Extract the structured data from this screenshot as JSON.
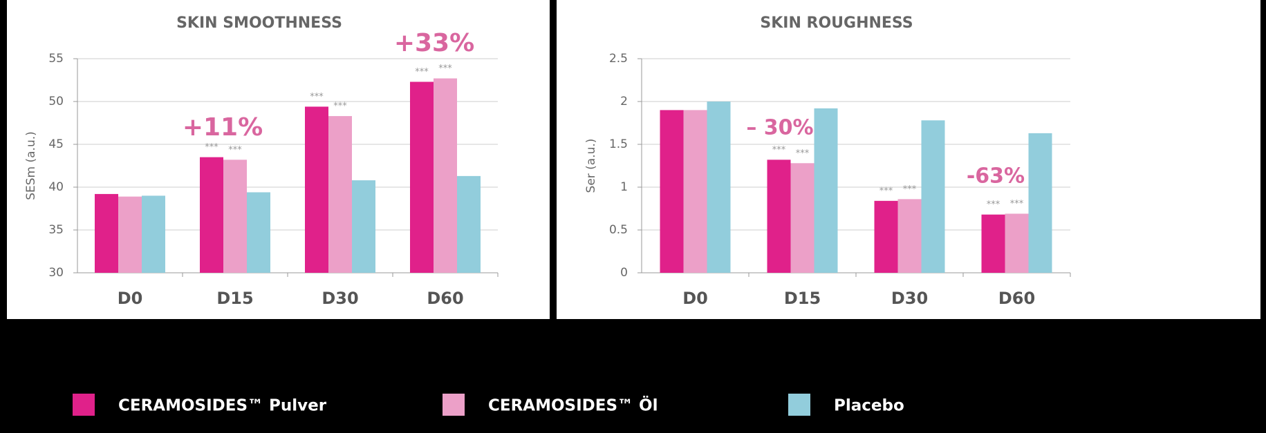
{
  "chart_data": [
    {
      "type": "bar",
      "title": "SKIN SMOOTHNESS",
      "y_label": "SESm (a.u.)",
      "categories": [
        "D0",
        "D15",
        "D30",
        "D60"
      ],
      "series": [
        {
          "name": "CERAMOSIDES™ Pulver",
          "color": "#e0218a",
          "values": [
            39.2,
            43.5,
            49.4,
            52.3
          ],
          "significance": [
            null,
            "***",
            "***",
            "***"
          ]
        },
        {
          "name": "CERAMOSIDES™ Öl",
          "color": "#eca0c8",
          "values": [
            38.9,
            43.2,
            48.3,
            52.7
          ],
          "significance": [
            null,
            "***",
            "***",
            "***"
          ]
        },
        {
          "name": "Placebo",
          "color": "#92cddc",
          "values": [
            39.0,
            39.4,
            40.8,
            41.3
          ]
        }
      ],
      "ylim": [
        30,
        55
      ],
      "yticks": [
        30,
        35,
        40,
        45,
        50,
        55
      ],
      "grid": true,
      "annotations": [
        "+11%",
        "+33%"
      ]
    },
    {
      "type": "bar",
      "title": "SKIN ROUGHNESS",
      "y_label": "Ser (a.u.)",
      "categories": [
        "D0",
        "D15",
        "D30",
        "D60"
      ],
      "series": [
        {
          "name": "CERAMOSIDES™ Pulver",
          "color": "#e0218a",
          "values": [
            1.9,
            1.32,
            0.84,
            0.68
          ],
          "significance": [
            null,
            "***",
            "***",
            "***"
          ]
        },
        {
          "name": "CERAMOSIDES™ Öl",
          "color": "#eca0c8",
          "values": [
            1.9,
            1.28,
            0.86,
            0.69
          ],
          "significance": [
            null,
            "***",
            "***",
            "***"
          ]
        },
        {
          "name": "Placebo",
          "color": "#92cddc",
          "values": [
            2.0,
            1.92,
            1.78,
            1.63
          ]
        }
      ],
      "ylim": [
        0,
        2.5
      ],
      "yticks": [
        0,
        0.5,
        1,
        1.5,
        2,
        2.5
      ],
      "grid": true,
      "annotations": [
        "– 30%",
        "-63%"
      ]
    }
  ]
}
